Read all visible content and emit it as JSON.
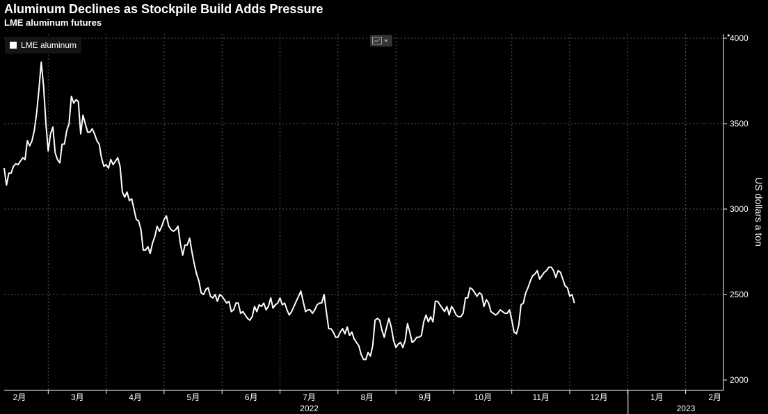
{
  "header": {
    "title": "Aluminum Declines as Stockpile Build Adds Pressure",
    "subtitle": "LME aluminum futures"
  },
  "legend": {
    "label": "LME aluminum",
    "color": "#ffffff"
  },
  "controls": {
    "icon": "line-chart-icon"
  },
  "colors": {
    "background": "#000000",
    "line": "#ffffff",
    "grid": "#5a5a5a"
  },
  "chart_data": {
    "type": "line",
    "title": "Aluminum Declines as Stockpile Build Adds Pressure",
    "subtitle": "LME aluminum futures",
    "ylabel": "US dollars a ton",
    "ylim": [
      2000,
      4000
    ],
    "yticks": [
      2000,
      2500,
      3000,
      3500,
      4000
    ],
    "y_axis_side": "right",
    "grid": true,
    "legend_position": "top-left",
    "x_month_labels": [
      "2月",
      "3月",
      "4月",
      "5月",
      "6月",
      "7月",
      "8月",
      "9月",
      "10月",
      "11月",
      "12月",
      "1月",
      "2月"
    ],
    "x_year_labels": [
      {
        "label": "2022",
        "month_index": 5
      },
      {
        "label": "2023",
        "month_index": 11.5
      }
    ],
    "x_unit": "months since 2022-01-31",
    "series": [
      {
        "name": "LME aluminum",
        "points": [
          [
            0.0,
            3240
          ],
          [
            0.04,
            3140
          ],
          [
            0.08,
            3210
          ],
          [
            0.12,
            3210
          ],
          [
            0.16,
            3250
          ],
          [
            0.2,
            3265
          ],
          [
            0.24,
            3260
          ],
          [
            0.28,
            3280
          ],
          [
            0.32,
            3300
          ],
          [
            0.36,
            3290
          ],
          [
            0.4,
            3400
          ],
          [
            0.44,
            3370
          ],
          [
            0.48,
            3400
          ],
          [
            0.52,
            3460
          ],
          [
            0.56,
            3560
          ],
          [
            0.6,
            3700
          ],
          [
            0.64,
            3860
          ],
          [
            0.68,
            3720
          ],
          [
            0.72,
            3500
          ],
          [
            0.76,
            3340
          ],
          [
            0.8,
            3440
          ],
          [
            0.84,
            3480
          ],
          [
            0.88,
            3330
          ],
          [
            0.92,
            3290
          ],
          [
            0.96,
            3270
          ],
          [
            1.0,
            3380
          ],
          [
            1.04,
            3380
          ],
          [
            1.08,
            3460
          ],
          [
            1.12,
            3500
          ],
          [
            1.16,
            3660
          ],
          [
            1.2,
            3620
          ],
          [
            1.24,
            3640
          ],
          [
            1.28,
            3630
          ],
          [
            1.32,
            3440
          ],
          [
            1.36,
            3550
          ],
          [
            1.4,
            3500
          ],
          [
            1.44,
            3450
          ],
          [
            1.48,
            3450
          ],
          [
            1.52,
            3470
          ],
          [
            1.56,
            3440
          ],
          [
            1.6,
            3400
          ],
          [
            1.64,
            3380
          ],
          [
            1.68,
            3300
          ],
          [
            1.72,
            3250
          ],
          [
            1.76,
            3260
          ],
          [
            1.8,
            3240
          ],
          [
            1.84,
            3290
          ],
          [
            1.88,
            3260
          ],
          [
            1.92,
            3280
          ],
          [
            1.96,
            3300
          ],
          [
            2.0,
            3250
          ],
          [
            2.04,
            3100
          ],
          [
            2.08,
            3070
          ],
          [
            2.12,
            3100
          ],
          [
            2.16,
            3050
          ],
          [
            2.2,
            3060
          ],
          [
            2.24,
            3000
          ],
          [
            2.28,
            2940
          ],
          [
            2.32,
            2930
          ],
          [
            2.36,
            2880
          ],
          [
            2.4,
            2760
          ],
          [
            2.44,
            2760
          ],
          [
            2.48,
            2780
          ],
          [
            2.52,
            2740
          ],
          [
            2.56,
            2800
          ],
          [
            2.6,
            2840
          ],
          [
            2.64,
            2900
          ],
          [
            2.68,
            2870
          ],
          [
            2.72,
            2900
          ],
          [
            2.76,
            2940
          ],
          [
            2.8,
            2960
          ],
          [
            2.84,
            2900
          ],
          [
            2.88,
            2880
          ],
          [
            2.92,
            2870
          ],
          [
            2.96,
            2880
          ],
          [
            3.0,
            2900
          ],
          [
            3.04,
            2800
          ],
          [
            3.08,
            2730
          ],
          [
            3.12,
            2790
          ],
          [
            3.16,
            2790
          ],
          [
            3.2,
            2830
          ],
          [
            3.24,
            2750
          ],
          [
            3.28,
            2680
          ],
          [
            3.32,
            2620
          ],
          [
            3.36,
            2580
          ],
          [
            3.4,
            2510
          ],
          [
            3.44,
            2500
          ],
          [
            3.48,
            2530
          ],
          [
            3.52,
            2540
          ],
          [
            3.56,
            2490
          ],
          [
            3.6,
            2480
          ],
          [
            3.64,
            2500
          ],
          [
            3.68,
            2460
          ],
          [
            3.72,
            2500
          ],
          [
            3.76,
            2490
          ],
          [
            3.8,
            2470
          ],
          [
            3.84,
            2450
          ],
          [
            3.88,
            2460
          ],
          [
            3.92,
            2400
          ],
          [
            3.96,
            2410
          ],
          [
            4.0,
            2450
          ],
          [
            4.04,
            2450
          ],
          [
            4.08,
            2390
          ],
          [
            4.12,
            2400
          ],
          [
            4.16,
            2380
          ],
          [
            4.2,
            2360
          ],
          [
            4.24,
            2350
          ],
          [
            4.28,
            2370
          ],
          [
            4.32,
            2430
          ],
          [
            4.36,
            2400
          ],
          [
            4.4,
            2440
          ],
          [
            4.44,
            2430
          ],
          [
            4.48,
            2450
          ],
          [
            4.52,
            2410
          ],
          [
            4.56,
            2430
          ],
          [
            4.6,
            2480
          ],
          [
            4.64,
            2420
          ],
          [
            4.68,
            2440
          ],
          [
            4.72,
            2450
          ],
          [
            4.76,
            2480
          ],
          [
            4.8,
            2440
          ],
          [
            4.84,
            2450
          ],
          [
            4.88,
            2410
          ],
          [
            4.92,
            2380
          ],
          [
            4.96,
            2400
          ],
          [
            5.0,
            2430
          ],
          [
            5.04,
            2460
          ],
          [
            5.08,
            2490
          ],
          [
            5.12,
            2520
          ],
          [
            5.16,
            2460
          ],
          [
            5.2,
            2400
          ],
          [
            5.24,
            2410
          ],
          [
            5.28,
            2410
          ],
          [
            5.32,
            2390
          ],
          [
            5.36,
            2410
          ],
          [
            5.4,
            2440
          ],
          [
            5.44,
            2450
          ],
          [
            5.48,
            2450
          ],
          [
            5.52,
            2500
          ],
          [
            5.56,
            2400
          ],
          [
            5.6,
            2300
          ],
          [
            5.64,
            2300
          ],
          [
            5.68,
            2280
          ],
          [
            5.72,
            2250
          ],
          [
            5.76,
            2250
          ],
          [
            5.8,
            2280
          ],
          [
            5.84,
            2300
          ],
          [
            5.88,
            2270
          ],
          [
            5.92,
            2310
          ],
          [
            5.96,
            2260
          ],
          [
            6.0,
            2280
          ],
          [
            6.04,
            2240
          ],
          [
            6.08,
            2220
          ],
          [
            6.12,
            2200
          ],
          [
            6.16,
            2150
          ],
          [
            6.2,
            2120
          ],
          [
            6.24,
            2120
          ],
          [
            6.28,
            2160
          ],
          [
            6.32,
            2140
          ],
          [
            6.36,
            2200
          ],
          [
            6.4,
            2350
          ],
          [
            6.44,
            2360
          ],
          [
            6.48,
            2350
          ],
          [
            6.52,
            2290
          ],
          [
            6.56,
            2250
          ],
          [
            6.6,
            2310
          ],
          [
            6.64,
            2360
          ],
          [
            6.68,
            2310
          ],
          [
            6.72,
            2230
          ],
          [
            6.76,
            2190
          ],
          [
            6.8,
            2210
          ],
          [
            6.84,
            2220
          ],
          [
            6.88,
            2190
          ],
          [
            6.92,
            2230
          ],
          [
            6.96,
            2330
          ],
          [
            7.0,
            2280
          ],
          [
            7.04,
            2220
          ],
          [
            7.08,
            2230
          ],
          [
            7.12,
            2250
          ],
          [
            7.16,
            2250
          ],
          [
            7.2,
            2260
          ],
          [
            7.24,
            2340
          ],
          [
            7.28,
            2380
          ],
          [
            7.32,
            2340
          ],
          [
            7.36,
            2370
          ],
          [
            7.4,
            2340
          ],
          [
            7.44,
            2460
          ],
          [
            7.48,
            2460
          ],
          [
            7.52,
            2440
          ],
          [
            7.56,
            2420
          ],
          [
            7.6,
            2400
          ],
          [
            7.64,
            2430
          ],
          [
            7.68,
            2380
          ],
          [
            7.72,
            2430
          ],
          [
            7.76,
            2410
          ],
          [
            7.8,
            2380
          ],
          [
            7.84,
            2370
          ],
          [
            7.88,
            2370
          ],
          [
            7.92,
            2390
          ],
          [
            7.96,
            2480
          ],
          [
            8.0,
            2480
          ],
          [
            8.04,
            2540
          ],
          [
            8.08,
            2530
          ],
          [
            8.12,
            2510
          ],
          [
            8.16,
            2490
          ],
          [
            8.2,
            2510
          ],
          [
            8.24,
            2500
          ],
          [
            8.28,
            2430
          ],
          [
            8.32,
            2470
          ],
          [
            8.36,
            2450
          ],
          [
            8.4,
            2400
          ],
          [
            8.44,
            2390
          ],
          [
            8.48,
            2380
          ],
          [
            8.52,
            2390
          ],
          [
            8.56,
            2410
          ],
          [
            8.6,
            2400
          ],
          [
            8.64,
            2390
          ],
          [
            8.68,
            2390
          ],
          [
            8.72,
            2410
          ],
          [
            8.76,
            2350
          ],
          [
            8.8,
            2280
          ],
          [
            8.84,
            2270
          ],
          [
            8.88,
            2320
          ],
          [
            8.92,
            2440
          ],
          [
            8.96,
            2450
          ],
          [
            9.0,
            2510
          ],
          [
            9.04,
            2540
          ],
          [
            9.08,
            2580
          ],
          [
            9.12,
            2610
          ],
          [
            9.16,
            2620
          ],
          [
            9.2,
            2640
          ],
          [
            9.24,
            2590
          ],
          [
            9.28,
            2610
          ],
          [
            9.32,
            2630
          ],
          [
            9.36,
            2640
          ],
          [
            9.4,
            2660
          ],
          [
            9.44,
            2660
          ],
          [
            9.48,
            2640
          ],
          [
            9.52,
            2600
          ],
          [
            9.56,
            2640
          ],
          [
            9.6,
            2630
          ],
          [
            9.64,
            2590
          ],
          [
            9.68,
            2550
          ],
          [
            9.72,
            2540
          ],
          [
            9.76,
            2490
          ],
          [
            9.8,
            2500
          ],
          [
            9.84,
            2450
          ]
        ]
      }
    ]
  }
}
